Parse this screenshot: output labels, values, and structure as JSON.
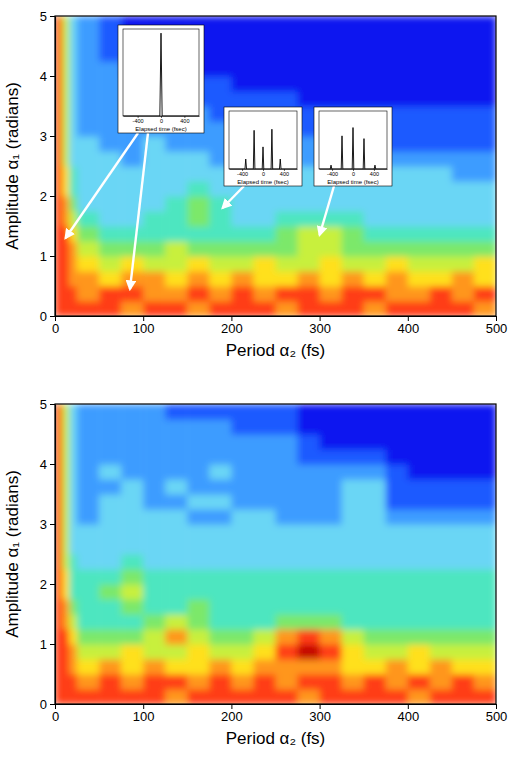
{
  "chart_data": [
    {
      "type": "heatmap",
      "x_label": "Period α₂ (fs)",
      "y_label": "Amplitude α₁ (radians)",
      "xlim": [
        0,
        500
      ],
      "xticks": [
        0,
        100,
        200,
        300,
        400,
        500
      ],
      "ylim": [
        0,
        5
      ],
      "yticks": [
        0,
        1,
        2,
        3,
        4,
        5
      ],
      "zlim": [
        0,
        10
      ],
      "x_edges": [
        0,
        8,
        16,
        25,
        50,
        75,
        100,
        125,
        150,
        175,
        200,
        225,
        250,
        275,
        300,
        325,
        350,
        375,
        400,
        425,
        450,
        475,
        500
      ],
      "y_edges": [
        0,
        0.25,
        0.5,
        0.75,
        1,
        1.25,
        1.5,
        1.75,
        2,
        2.25,
        2.5,
        2.75,
        3,
        3.25,
        3.5,
        3.75,
        4,
        4.25,
        4.5,
        4.75,
        5
      ],
      "z": [
        [
          9,
          9,
          9,
          9,
          9,
          8,
          9,
          9,
          8,
          9,
          9,
          9,
          8,
          9,
          9,
          9,
          8,
          9,
          9,
          9,
          9,
          8
        ],
        [
          9,
          9,
          9,
          8,
          9,
          9,
          8,
          8,
          9,
          8,
          9,
          8,
          9,
          9,
          8,
          9,
          9,
          8,
          8,
          9,
          8,
          9
        ],
        [
          9,
          9,
          8,
          8,
          7,
          8,
          8,
          7,
          8,
          7,
          8,
          7,
          7,
          8,
          7,
          8,
          7,
          8,
          7,
          7,
          8,
          7
        ],
        [
          9,
          9,
          8,
          7,
          6,
          7,
          6,
          6,
          7,
          6,
          6,
          7,
          6,
          6,
          7,
          6,
          6,
          7,
          6,
          6,
          6,
          7
        ],
        [
          9,
          9,
          8,
          6,
          5,
          5,
          5,
          6,
          5,
          5,
          5,
          5,
          5,
          6,
          6,
          5,
          5,
          5,
          5,
          5,
          5,
          5
        ],
        [
          9,
          9,
          7,
          5,
          4,
          4,
          4,
          4,
          4,
          4,
          4,
          4,
          5,
          6,
          6,
          5,
          4,
          4,
          4,
          4,
          4,
          4
        ],
        [
          9,
          8,
          6,
          4,
          3,
          3,
          4,
          4,
          5,
          4,
          3,
          3,
          4,
          4,
          4,
          4,
          3,
          3,
          3,
          3,
          3,
          3
        ],
        [
          9,
          8,
          5,
          3,
          3,
          3,
          3,
          4,
          5,
          4,
          3,
          3,
          3,
          3,
          3,
          3,
          3,
          3,
          3,
          3,
          3,
          3
        ],
        [
          9,
          7,
          4,
          3,
          3,
          3,
          3,
          3,
          4,
          3,
          3,
          3,
          3,
          3,
          3,
          3,
          3,
          3,
          3,
          3,
          3,
          3
        ],
        [
          9,
          7,
          4,
          3,
          3,
          3,
          3,
          3,
          3,
          3,
          3,
          3,
          3,
          3,
          3,
          3,
          3,
          3,
          3,
          3,
          2,
          2
        ],
        [
          9,
          6,
          3,
          3,
          3,
          2,
          3,
          3,
          3,
          2,
          3,
          3,
          3,
          2,
          2,
          2,
          2,
          2,
          2,
          2,
          2,
          2
        ],
        [
          9,
          6,
          3,
          3,
          2,
          2,
          3,
          2,
          2,
          2,
          2,
          2,
          2,
          2,
          2,
          1,
          1,
          1,
          1,
          1,
          1,
          1
        ],
        [
          9,
          6,
          3,
          2,
          2,
          2,
          2,
          2,
          2,
          2,
          2,
          2,
          2,
          1,
          1,
          1,
          1,
          1,
          1,
          1,
          1,
          1
        ],
        [
          9,
          6,
          3,
          2,
          2,
          2,
          2,
          2,
          2,
          1,
          1,
          1,
          1,
          1,
          1,
          1,
          1,
          1,
          1,
          1,
          1,
          1
        ],
        [
          9,
          6,
          3,
          2,
          2,
          2,
          2,
          2,
          1,
          1,
          1,
          1,
          1,
          0,
          0,
          0,
          0,
          0,
          0,
          0,
          0,
          0
        ],
        [
          9,
          6,
          3,
          2,
          2,
          2,
          1,
          1,
          1,
          1,
          0,
          0,
          0,
          0,
          0,
          0,
          0,
          0,
          0,
          0,
          0,
          0
        ],
        [
          9,
          6,
          3,
          2,
          2,
          1,
          1,
          1,
          0,
          0,
          0,
          0,
          0,
          0,
          0,
          0,
          0,
          0,
          0,
          0,
          0,
          0
        ],
        [
          9,
          6,
          3,
          2,
          1,
          1,
          1,
          0,
          0,
          0,
          0,
          0,
          0,
          0,
          0,
          0,
          0,
          0,
          0,
          0,
          0,
          0
        ],
        [
          9,
          6,
          3,
          2,
          1,
          1,
          0,
          0,
          0,
          0,
          0,
          0,
          0,
          0,
          0,
          0,
          0,
          0,
          0,
          0,
          0,
          0
        ],
        [
          9,
          6,
          3,
          2,
          1,
          0,
          0,
          0,
          0,
          0,
          0,
          0,
          0,
          0,
          0,
          0,
          0,
          0,
          0,
          0,
          0,
          0
        ]
      ],
      "insets": [
        {
          "type": "line",
          "x_label": "Elapsed time (fsec)",
          "color": "#000000",
          "xlim": [
            -650,
            650
          ],
          "xticks": [
            -400,
            0,
            400
          ],
          "ylim": [
            0,
            1.05
          ],
          "tick_labels": "x",
          "x": [
            -650,
            -20,
            0,
            20,
            650
          ],
          "values": [
            0,
            0,
            1,
            0,
            0
          ],
          "points_to": [
            [
              12,
              1.3
            ],
            [
              85,
              0.45
            ]
          ]
        },
        {
          "type": "line",
          "x_label": "Elapsed time (fsec)",
          "color": "#000000",
          "xlim": [
            -650,
            650
          ],
          "xticks": [
            -400,
            0,
            400
          ],
          "ylim": [
            0,
            1.05
          ],
          "tick_labels": "x",
          "x": [
            -650,
            -345,
            -330,
            -315,
            -185,
            -170,
            -155,
            -15,
            0,
            15,
            155,
            170,
            185,
            315,
            330,
            345,
            650
          ],
          "values": [
            0,
            0,
            0.18,
            0,
            0,
            0.7,
            0,
            0,
            0.4,
            0,
            0,
            0.72,
            0,
            0,
            0.18,
            0,
            0
          ],
          "points_to": [
            [
              190,
              1.8
            ]
          ]
        },
        {
          "type": "line",
          "x_label": "Elapsed time (fsec)",
          "color": "#000000",
          "xlim": [
            -650,
            650
          ],
          "xticks": [
            -400,
            0,
            400
          ],
          "ylim": [
            0,
            1.05
          ],
          "tick_labels": "x",
          "x": [
            -650,
            -435,
            -420,
            -405,
            -225,
            -210,
            -195,
            -15,
            0,
            15,
            195,
            210,
            225,
            405,
            420,
            435,
            650
          ],
          "values": [
            0,
            0,
            0.07,
            0,
            0,
            0.6,
            0,
            0,
            0.75,
            0,
            0,
            0.55,
            0,
            0,
            0.07,
            0,
            0
          ],
          "points_to": [
            [
              300,
              1.35
            ]
          ]
        }
      ]
    },
    {
      "type": "heatmap",
      "x_label": "Period α₂ (fs)",
      "y_label": "Amplitude α₁ (radians)",
      "xlim": [
        0,
        500
      ],
      "xticks": [
        0,
        100,
        200,
        300,
        400,
        500
      ],
      "ylim": [
        0,
        5
      ],
      "yticks": [
        0,
        1,
        2,
        3,
        4,
        5
      ],
      "zlim": [
        0,
        10
      ],
      "x_edges": [
        0,
        8,
        16,
        25,
        50,
        75,
        100,
        125,
        150,
        175,
        200,
        225,
        250,
        275,
        300,
        325,
        350,
        375,
        400,
        425,
        450,
        475,
        500
      ],
      "y_edges": [
        0,
        0.25,
        0.5,
        0.75,
        1,
        1.25,
        1.5,
        1.75,
        2,
        2.25,
        2.5,
        2.75,
        3,
        3.25,
        3.5,
        3.75,
        4,
        4.25,
        4.5,
        4.75,
        5
      ],
      "z": [
        [
          9,
          9,
          9,
          9,
          9,
          9,
          9,
          8,
          9,
          9,
          9,
          9,
          9,
          8,
          9,
          9,
          9,
          9,
          8,
          9,
          9,
          9
        ],
        [
          9,
          9,
          9,
          8,
          9,
          8,
          9,
          9,
          8,
          9,
          8,
          9,
          8,
          9,
          9,
          8,
          9,
          8,
          9,
          8,
          9,
          8
        ],
        [
          9,
          9,
          8,
          7,
          8,
          7,
          8,
          7,
          7,
          8,
          7,
          8,
          8,
          8,
          8,
          7,
          7,
          8,
          7,
          8,
          7,
          7
        ],
        [
          9,
          9,
          8,
          6,
          6,
          7,
          6,
          6,
          7,
          6,
          6,
          7,
          9,
          10,
          9,
          7,
          6,
          6,
          7,
          6,
          6,
          6
        ],
        [
          9,
          9,
          7,
          5,
          5,
          5,
          6,
          8,
          6,
          5,
          5,
          6,
          8,
          9,
          8,
          6,
          5,
          5,
          5,
          5,
          5,
          5
        ],
        [
          9,
          8,
          6,
          4,
          4,
          4,
          5,
          6,
          5,
          4,
          4,
          4,
          5,
          5,
          5,
          4,
          4,
          4,
          4,
          4,
          4,
          4
        ],
        [
          9,
          8,
          5,
          4,
          4,
          5,
          4,
          4,
          5,
          4,
          4,
          4,
          4,
          4,
          4,
          4,
          4,
          4,
          4,
          4,
          4,
          4
        ],
        [
          9,
          7,
          4,
          4,
          5,
          6,
          4,
          4,
          4,
          4,
          4,
          4,
          4,
          4,
          4,
          4,
          4,
          4,
          4,
          4,
          4,
          4
        ],
        [
          9,
          7,
          4,
          4,
          4,
          5,
          4,
          4,
          4,
          4,
          4,
          4,
          4,
          4,
          4,
          4,
          4,
          4,
          4,
          4,
          4,
          4
        ],
        [
          9,
          6,
          4,
          3,
          3,
          4,
          3,
          3,
          3,
          3,
          3,
          3,
          3,
          3,
          3,
          3,
          3,
          3,
          3,
          3,
          3,
          3
        ],
        [
          9,
          6,
          3,
          3,
          3,
          3,
          3,
          3,
          3,
          3,
          3,
          3,
          3,
          3,
          3,
          3,
          3,
          3,
          3,
          3,
          3,
          3
        ],
        [
          9,
          6,
          3,
          3,
          3,
          3,
          3,
          3,
          3,
          3,
          3,
          3,
          3,
          3,
          3,
          3,
          3,
          3,
          3,
          3,
          3,
          3
        ],
        [
          9,
          6,
          3,
          2,
          3,
          3,
          3,
          3,
          2,
          2,
          3,
          3,
          2,
          2,
          2,
          3,
          3,
          2,
          2,
          2,
          2,
          2
        ],
        [
          9,
          6,
          3,
          2,
          3,
          3,
          2,
          2,
          3,
          3,
          2,
          2,
          2,
          2,
          2,
          3,
          3,
          1,
          1,
          1,
          1,
          1
        ],
        [
          9,
          6,
          3,
          2,
          2,
          3,
          2,
          3,
          2,
          2,
          2,
          2,
          2,
          2,
          2,
          3,
          3,
          1,
          1,
          1,
          1,
          1
        ],
        [
          9,
          6,
          3,
          2,
          3,
          2,
          2,
          2,
          2,
          3,
          2,
          2,
          2,
          2,
          2,
          2,
          2,
          1,
          0,
          0,
          0,
          0
        ],
        [
          9,
          6,
          3,
          2,
          2,
          2,
          2,
          2,
          2,
          2,
          2,
          2,
          2,
          1,
          1,
          1,
          1,
          0,
          0,
          0,
          0,
          0
        ],
        [
          9,
          6,
          3,
          2,
          2,
          2,
          2,
          2,
          2,
          2,
          2,
          2,
          2,
          1,
          0,
          0,
          0,
          0,
          0,
          0,
          0,
          0
        ],
        [
          9,
          6,
          3,
          2,
          2,
          2,
          2,
          2,
          2,
          2,
          1,
          1,
          1,
          0,
          0,
          0,
          0,
          0,
          0,
          0,
          0,
          0
        ],
        [
          9,
          6,
          3,
          2,
          2,
          2,
          2,
          1,
          1,
          1,
          1,
          1,
          1,
          0,
          0,
          0,
          0,
          0,
          0,
          0,
          0,
          0
        ]
      ]
    }
  ]
}
